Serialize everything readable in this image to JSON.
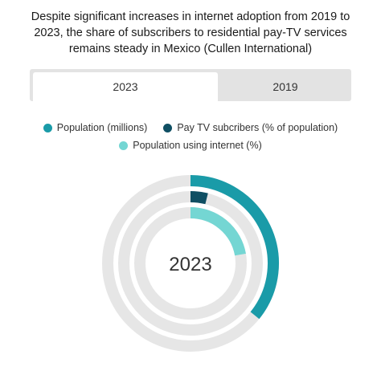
{
  "title": "Despite significant increases in internet adoption from 2019 to 2023, the share of subscribers to residential pay-TV services remains steady in Mexico (Cullen International)",
  "tabs": [
    {
      "label": "2023",
      "active": true
    },
    {
      "label": "2019",
      "active": false
    }
  ],
  "colors": {
    "population": "#1a9ba8",
    "paytv": "#0f4f63",
    "internet": "#74d6d3",
    "track": "#e6e6e6"
  },
  "chart_data": {
    "type": "radial-bar",
    "center_label": "2023",
    "series": [
      {
        "name": "Population (millions)",
        "value": 129
      },
      {
        "name": "Pay TV subcribers (% of population)",
        "value": 14
      },
      {
        "name": "Population using internet (%)",
        "value": 80
      }
    ],
    "max": 360,
    "legend": "top"
  }
}
